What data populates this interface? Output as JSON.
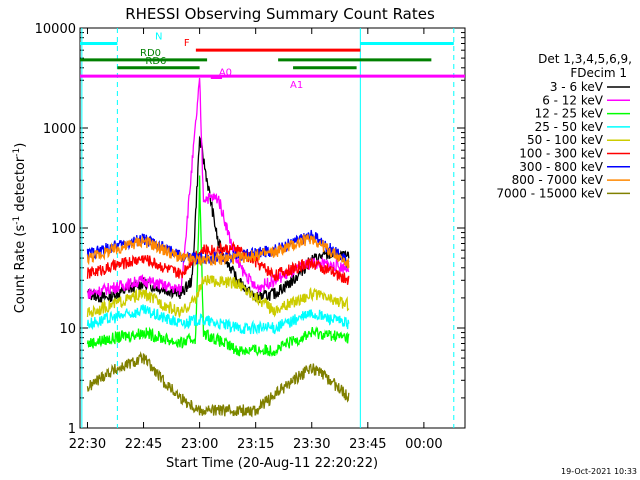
{
  "chart_data": {
    "type": "line",
    "title": "RHESSI Observing Summary Count Rates",
    "xlabel": "Start Time (20-Aug-11 22:20:22)",
    "ylabel_main": "Count Rate (s",
    "ylabel_sup1": "-1",
    "ylabel_mid": " detector",
    "ylabel_sup2": "-1",
    "ylabel_end": ")",
    "yscale": "log",
    "ylim": [
      1,
      10000
    ],
    "xlim_minutes": [
      -2,
      101
    ],
    "x_ticks": [
      {
        "m": 0,
        "label": "22:30"
      },
      {
        "m": 15,
        "label": "22:45"
      },
      {
        "m": 30,
        "label": "23:00"
      },
      {
        "m": 45,
        "label": "23:15"
      },
      {
        "m": 60,
        "label": "23:30"
      },
      {
        "m": 75,
        "label": "23:45"
      },
      {
        "m": 90,
        "label": "00:00"
      }
    ],
    "y_ticks": [
      {
        "v": 1,
        "label": "1"
      },
      {
        "v": 10,
        "label": "10"
      },
      {
        "v": 100,
        "label": "100"
      },
      {
        "v": 1000,
        "label": "1000"
      },
      {
        "v": 10000,
        "label": "10000"
      }
    ],
    "legend_header": [
      "Det 1,3,4,5,6,9,",
      "FDecim 1"
    ],
    "series": [
      {
        "name": "3 - 6 keV",
        "color": "#000000",
        "values": [
          [
            0,
            22
          ],
          [
            5,
            20
          ],
          [
            15,
            28
          ],
          [
            25,
            22
          ],
          [
            28,
            30
          ],
          [
            30,
            800
          ],
          [
            32,
            300
          ],
          [
            35,
            70
          ],
          [
            40,
            30
          ],
          [
            45,
            20
          ],
          [
            50,
            22
          ],
          [
            55,
            30
          ],
          [
            60,
            48
          ],
          [
            65,
            55
          ],
          [
            70,
            50
          ]
        ]
      },
      {
        "name": "6 - 12 keV",
        "color": "#ff00ff",
        "values": [
          [
            0,
            22
          ],
          [
            15,
            30
          ],
          [
            25,
            24
          ],
          [
            30,
            3000
          ],
          [
            31,
            200
          ],
          [
            35,
            200
          ],
          [
            40,
            45
          ],
          [
            45,
            25
          ],
          [
            50,
            30
          ],
          [
            60,
            45
          ],
          [
            70,
            40
          ]
        ]
      },
      {
        "name": "12 - 25 keV",
        "color": "#00ff00",
        "values": [
          [
            0,
            7
          ],
          [
            15,
            9
          ],
          [
            25,
            7
          ],
          [
            29,
            8
          ],
          [
            30,
            300
          ],
          [
            31,
            9
          ],
          [
            40,
            6
          ],
          [
            50,
            6
          ],
          [
            60,
            9
          ],
          [
            70,
            8
          ]
        ]
      },
      {
        "name": "25 - 50 keV",
        "color": "#00ffff",
        "values": [
          [
            0,
            11
          ],
          [
            15,
            15
          ],
          [
            25,
            11
          ],
          [
            29,
            12
          ],
          [
            31,
            12
          ],
          [
            40,
            10
          ],
          [
            50,
            10
          ],
          [
            60,
            14
          ],
          [
            70,
            11
          ]
        ]
      },
      {
        "name": "50 - 100 keV",
        "color": "#cccc00",
        "values": [
          [
            0,
            14
          ],
          [
            15,
            22
          ],
          [
            25,
            14
          ],
          [
            29,
            20
          ],
          [
            31,
            30
          ],
          [
            40,
            28
          ],
          [
            50,
            15
          ],
          [
            60,
            22
          ],
          [
            70,
            17
          ]
        ]
      },
      {
        "name": "100 - 300 keV",
        "color": "#ff0000",
        "values": [
          [
            0,
            35
          ],
          [
            15,
            50
          ],
          [
            25,
            34
          ],
          [
            29,
            55
          ],
          [
            31,
            60
          ],
          [
            40,
            62
          ],
          [
            50,
            34
          ],
          [
            60,
            45
          ],
          [
            70,
            30
          ]
        ]
      },
      {
        "name": "300 - 800 keV",
        "color": "#0000ff",
        "values": [
          [
            0,
            55
          ],
          [
            15,
            78
          ],
          [
            25,
            52
          ],
          [
            29,
            50
          ],
          [
            31,
            50
          ],
          [
            40,
            52
          ],
          [
            50,
            60
          ],
          [
            60,
            85
          ],
          [
            70,
            45
          ]
        ]
      },
      {
        "name": "800 - 7000 keV",
        "color": "#ff8800",
        "values": [
          [
            0,
            50
          ],
          [
            15,
            75
          ],
          [
            25,
            50
          ],
          [
            29,
            48
          ],
          [
            31,
            48
          ],
          [
            40,
            50
          ],
          [
            50,
            57
          ],
          [
            60,
            80
          ],
          [
            70,
            43
          ]
        ]
      },
      {
        "name": "7000 - 15000 keV",
        "color": "#808000",
        "values": [
          [
            0,
            2.5
          ],
          [
            5,
            3.5
          ],
          [
            15,
            5
          ],
          [
            20,
            3
          ],
          [
            25,
            2
          ],
          [
            30,
            1.5
          ],
          [
            45,
            1.5
          ],
          [
            55,
            3
          ],
          [
            60,
            4
          ],
          [
            65,
            3
          ],
          [
            70,
            2
          ]
        ]
      }
    ],
    "annotations": [
      {
        "label": "N",
        "color": "#00ffff",
        "segments": [
          [
            -2,
            8
          ],
          [
            73,
            98
          ]
        ],
        "y": 7000
      },
      {
        "label": "F",
        "color": "#ff0000",
        "segments": [
          [
            29,
            73
          ]
        ],
        "y": 6000
      },
      {
        "label": "RD0",
        "color": "#008000",
        "segments": [
          [
            -2,
            32
          ],
          [
            51,
            92
          ]
        ],
        "y": 4800
      },
      {
        "label": "RD6",
        "color": "#008000",
        "segments": [
          [
            8,
            30
          ],
          [
            55,
            72
          ]
        ],
        "y": 4000
      },
      {
        "label": "A0",
        "color": "#ff00ff",
        "segments": [
          [
            33,
            36
          ]
        ],
        "y": 3200
      },
      {
        "label": "A1",
        "color": "#ff00ff",
        "segments": [
          [
            -2,
            101
          ]
        ],
        "y": 3300
      }
    ],
    "footer": "19-Oct-2021 10:33"
  }
}
